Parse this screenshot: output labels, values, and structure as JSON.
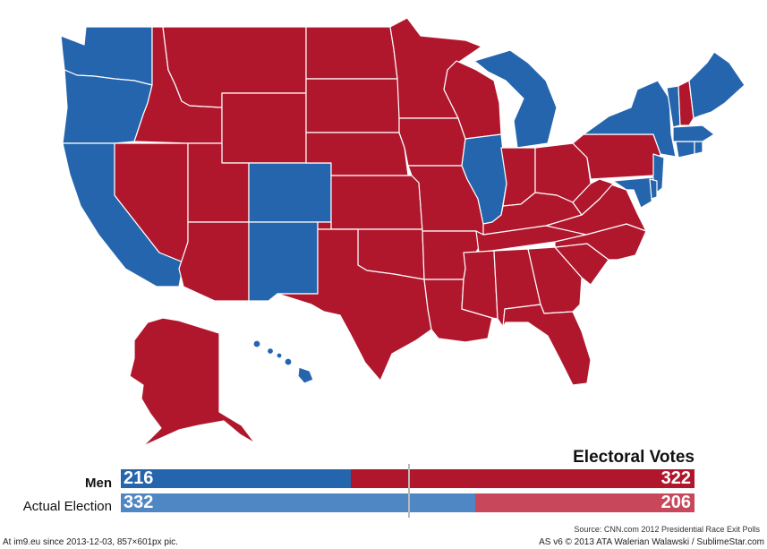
{
  "colors": {
    "dem": "#2565ad",
    "rep": "#b0172d",
    "dem_light": "#4f86c4",
    "rep_light": "#c9475a"
  },
  "states": [
    {
      "id": "WA",
      "party": "dem"
    },
    {
      "id": "OR",
      "party": "dem"
    },
    {
      "id": "CA",
      "party": "dem"
    },
    {
      "id": "NV",
      "party": "rep"
    },
    {
      "id": "ID",
      "party": "rep"
    },
    {
      "id": "MT",
      "party": "rep"
    },
    {
      "id": "WY",
      "party": "rep"
    },
    {
      "id": "UT",
      "party": "rep"
    },
    {
      "id": "CO",
      "party": "dem"
    },
    {
      "id": "AZ",
      "party": "rep"
    },
    {
      "id": "NM",
      "party": "dem"
    },
    {
      "id": "ND",
      "party": "rep"
    },
    {
      "id": "SD",
      "party": "rep"
    },
    {
      "id": "NE",
      "party": "rep"
    },
    {
      "id": "KS",
      "party": "rep"
    },
    {
      "id": "OK",
      "party": "rep"
    },
    {
      "id": "TX",
      "party": "rep"
    },
    {
      "id": "MN",
      "party": "rep"
    },
    {
      "id": "IA",
      "party": "rep"
    },
    {
      "id": "MO",
      "party": "rep"
    },
    {
      "id": "AR",
      "party": "rep"
    },
    {
      "id": "LA",
      "party": "rep"
    },
    {
      "id": "WI",
      "party": "rep"
    },
    {
      "id": "IL",
      "party": "dem"
    },
    {
      "id": "MI",
      "party": "dem"
    },
    {
      "id": "IN",
      "party": "rep"
    },
    {
      "id": "OH",
      "party": "rep"
    },
    {
      "id": "KY",
      "party": "rep"
    },
    {
      "id": "TN",
      "party": "rep"
    },
    {
      "id": "MS",
      "party": "rep"
    },
    {
      "id": "AL",
      "party": "rep"
    },
    {
      "id": "GA",
      "party": "rep"
    },
    {
      "id": "FL",
      "party": "rep"
    },
    {
      "id": "SC",
      "party": "rep"
    },
    {
      "id": "NC",
      "party": "rep"
    },
    {
      "id": "VA",
      "party": "rep"
    },
    {
      "id": "WV",
      "party": "rep"
    },
    {
      "id": "PA",
      "party": "rep"
    },
    {
      "id": "NY",
      "party": "dem"
    },
    {
      "id": "NJ",
      "party": "dem"
    },
    {
      "id": "MD",
      "party": "dem"
    },
    {
      "id": "DE",
      "party": "dem"
    },
    {
      "id": "CT",
      "party": "dem"
    },
    {
      "id": "RI",
      "party": "dem"
    },
    {
      "id": "MA",
      "party": "dem"
    },
    {
      "id": "VT",
      "party": "dem"
    },
    {
      "id": "NH",
      "party": "rep"
    },
    {
      "id": "ME",
      "party": "dem"
    },
    {
      "id": "AK",
      "party": "rep"
    },
    {
      "id": "HI",
      "party": "dem"
    }
  ],
  "legend": {
    "title": "Electoral Votes",
    "total": 538,
    "rows": [
      {
        "label": "Men",
        "dem": 216,
        "rep": 322,
        "dem_label": "216",
        "rep_label": "322"
      },
      {
        "label": "Actual Election",
        "dem": 332,
        "rep": 206,
        "dem_label": "332",
        "rep_label": "206"
      }
    ]
  },
  "source": "Source: CNN.com 2012 Presidential Race Exit Polls",
  "footer": {
    "left": "At im9.eu  since 2013-12-03, 857×601px pic.",
    "right": "AS v6 © 2013 ATA Walerian Walawski / SublimeStar.com"
  }
}
